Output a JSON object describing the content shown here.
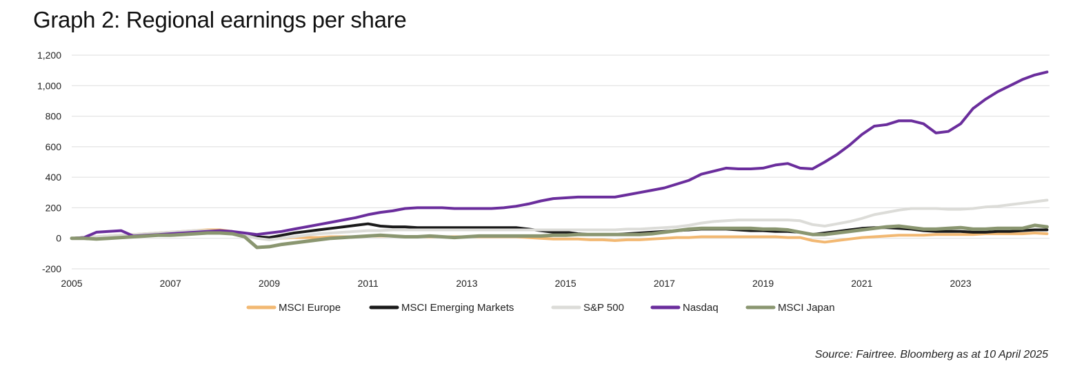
{
  "title": "Graph 2: Regional earnings per share",
  "source": "Source: Fairtree. Bloomberg as at 10 April 2025",
  "chart_data": {
    "type": "line",
    "title": "Graph 2: Regional earnings per share",
    "xlabel": "",
    "ylabel": "",
    "xlim": [
      2005,
      2024.8
    ],
    "ylim": [
      -200,
      1200
    ],
    "yticks": [
      -200,
      0,
      200,
      400,
      600,
      800,
      1000,
      1200
    ],
    "ytick_labels": [
      "-200",
      "0",
      "200",
      "400",
      "600",
      "800",
      "1,000",
      "1,200"
    ],
    "xticks": [
      2005,
      2007,
      2009,
      2011,
      2013,
      2015,
      2017,
      2019,
      2021,
      2023
    ],
    "xtick_labels": [
      "2005",
      "2007",
      "2009",
      "2011",
      "2013",
      "2015",
      "2017",
      "2019",
      "2021",
      "2023"
    ],
    "grid": "horizontal",
    "legend_position": "bottom",
    "x": [
      2005,
      2005.25,
      2005.5,
      2005.75,
      2006,
      2006.25,
      2006.5,
      2006.75,
      2007,
      2007.25,
      2007.5,
      2007.75,
      2008,
      2008.25,
      2008.5,
      2008.75,
      2009,
      2009.25,
      2009.5,
      2009.75,
      2010,
      2010.25,
      2010.5,
      2010.75,
      2011,
      2011.25,
      2011.5,
      2011.75,
      2012,
      2012.25,
      2012.5,
      2012.75,
      2013,
      2013.25,
      2013.5,
      2013.75,
      2014,
      2014.25,
      2014.5,
      2014.75,
      2015,
      2015.25,
      2015.5,
      2015.75,
      2016,
      2016.25,
      2016.5,
      2016.75,
      2017,
      2017.25,
      2017.5,
      2017.75,
      2018,
      2018.25,
      2018.5,
      2018.75,
      2019,
      2019.25,
      2019.5,
      2019.75,
      2020,
      2020.25,
      2020.5,
      2020.75,
      2021,
      2021.25,
      2021.5,
      2021.75,
      2022,
      2022.25,
      2022.5,
      2022.75,
      2023,
      2023.25,
      2023.5,
      2023.75,
      2024,
      2024.25,
      2024.5,
      2024.75
    ],
    "series": [
      {
        "name": "MSCI Europe",
        "color": "#f2b872",
        "width": 4,
        "values": [
          0,
          5,
          10,
          15,
          20,
          25,
          30,
          35,
          40,
          45,
          50,
          55,
          55,
          45,
          25,
          5,
          -5,
          0,
          5,
          5,
          5,
          10,
          10,
          10,
          15,
          15,
          15,
          10,
          10,
          10,
          10,
          10,
          10,
          10,
          10,
          10,
          10,
          5,
          0,
          -5,
          -5,
          -5,
          -10,
          -10,
          -15,
          -10,
          -10,
          -5,
          0,
          5,
          5,
          10,
          10,
          10,
          10,
          10,
          10,
          10,
          5,
          5,
          -15,
          -25,
          -15,
          -5,
          5,
          10,
          15,
          20,
          20,
          20,
          25,
          25,
          25,
          25,
          30,
          30,
          30,
          30,
          35,
          30
        ]
      },
      {
        "name": "MSCI Emerging Markets",
        "color": "#1a1a1a",
        "width": 4,
        "values": [
          0,
          5,
          5,
          10,
          10,
          15,
          20,
          25,
          30,
          35,
          40,
          45,
          45,
          40,
          30,
          10,
          5,
          20,
          35,
          45,
          55,
          65,
          75,
          85,
          95,
          80,
          75,
          75,
          70,
          70,
          70,
          70,
          70,
          70,
          70,
          70,
          70,
          60,
          50,
          40,
          40,
          30,
          25,
          25,
          25,
          30,
          35,
          40,
          45,
          50,
          55,
          60,
          60,
          60,
          55,
          50,
          50,
          45,
          45,
          40,
          25,
          35,
          45,
          55,
          65,
          70,
          70,
          65,
          60,
          50,
          45,
          45,
          45,
          40,
          40,
          45,
          45,
          50,
          55,
          55
        ]
      },
      {
        "name": "S&P 500",
        "color": "#dcdcd8",
        "width": 4,
        "values": [
          0,
          5,
          10,
          15,
          20,
          25,
          30,
          35,
          40,
          45,
          50,
          50,
          45,
          35,
          20,
          0,
          -10,
          0,
          10,
          20,
          30,
          35,
          40,
          45,
          50,
          50,
          55,
          55,
          55,
          55,
          55,
          55,
          55,
          55,
          55,
          55,
          55,
          55,
          55,
          55,
          55,
          55,
          55,
          55,
          55,
          60,
          60,
          65,
          70,
          75,
          85,
          100,
          110,
          115,
          120,
          120,
          120,
          120,
          120,
          115,
          90,
          80,
          95,
          110,
          130,
          155,
          170,
          185,
          195,
          195,
          195,
          190,
          190,
          195,
          205,
          210,
          220,
          230,
          240,
          250
        ]
      },
      {
        "name": "Nasdaq",
        "color": "#6a2d9c",
        "width": 4,
        "values": [
          0,
          5,
          40,
          45,
          50,
          15,
          20,
          25,
          30,
          35,
          40,
          45,
          50,
          45,
          35,
          25,
          35,
          45,
          60,
          75,
          90,
          105,
          120,
          135,
          155,
          170,
          180,
          195,
          200,
          200,
          200,
          195,
          195,
          195,
          195,
          200,
          210,
          225,
          245,
          260,
          265,
          270,
          270,
          270,
          270,
          285,
          300,
          315,
          330,
          355,
          380,
          420,
          440,
          460,
          455,
          455,
          460,
          480,
          490,
          460,
          455,
          500,
          550,
          610,
          680,
          735,
          745,
          770,
          770,
          750,
          690,
          700,
          750,
          850,
          910,
          960,
          1000,
          1040,
          1070,
          1090
        ]
      },
      {
        "name": "MSCI Japan",
        "color": "#8a9670",
        "width": 5,
        "values": [
          0,
          0,
          -5,
          0,
          5,
          10,
          15,
          20,
          20,
          25,
          30,
          35,
          35,
          30,
          10,
          -60,
          -55,
          -40,
          -30,
          -20,
          -10,
          0,
          5,
          10,
          15,
          20,
          15,
          10,
          10,
          15,
          10,
          5,
          10,
          15,
          15,
          15,
          15,
          15,
          15,
          20,
          20,
          25,
          25,
          25,
          25,
          25,
          25,
          30,
          40,
          50,
          60,
          65,
          65,
          65,
          65,
          65,
          60,
          60,
          55,
          40,
          25,
          25,
          35,
          45,
          55,
          65,
          75,
          80,
          70,
          60,
          60,
          65,
          70,
          60,
          60,
          65,
          65,
          65,
          85,
          75
        ]
      }
    ]
  }
}
